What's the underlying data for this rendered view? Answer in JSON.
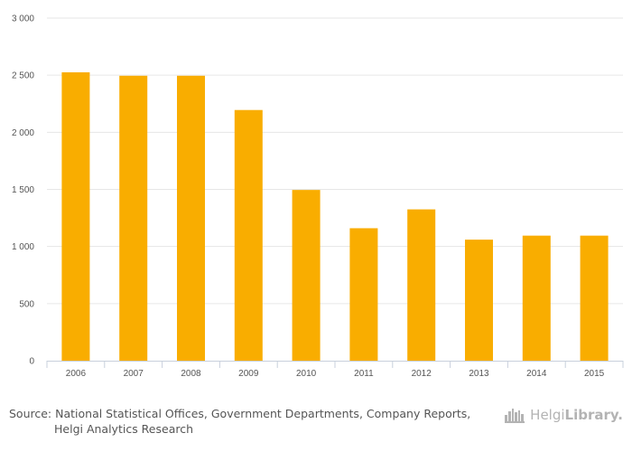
{
  "chart_data": {
    "type": "bar",
    "title": "",
    "xlabel": "",
    "ylabel": "",
    "categories": [
      "2006",
      "2007",
      "2008",
      "2009",
      "2010",
      "2011",
      "2012",
      "2013",
      "2014",
      "2015"
    ],
    "values": [
      2525,
      2495,
      2495,
      2195,
      1495,
      1160,
      1325,
      1060,
      1095,
      1095
    ],
    "ylim": [
      0,
      3000
    ],
    "yticks": [
      0,
      500,
      1000,
      1500,
      2000,
      2500,
      3000
    ],
    "ytick_labels": [
      "0",
      "500",
      "1 000",
      "1 500",
      "2 000",
      "2 500",
      "3 000"
    ],
    "grid": true,
    "bar_color": "#f9ad00"
  },
  "footer": {
    "source_line1": "Source: National Statistical Offices, Government Departments, Company Reports,",
    "source_line2": "Helgi Analytics Research",
    "brand_part1": "Helgi",
    "brand_part2": "Library."
  }
}
